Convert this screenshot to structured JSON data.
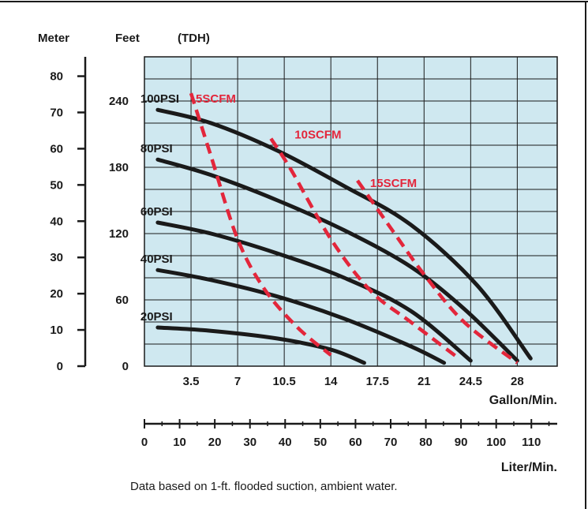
{
  "chart_data": {
    "type": "line",
    "header_labels": [
      "Meter",
      "Feet",
      "(TDH)"
    ],
    "y_left_meter_ticks": [
      "80",
      "70",
      "60",
      "50",
      "40",
      "30",
      "20",
      "10",
      "0"
    ],
    "y_feet_ticks": [
      "240",
      "180",
      "120",
      "60",
      "0"
    ],
    "x_gallon_ticks": [
      "3.5",
      "7",
      "10.5",
      "14",
      "17.5",
      "21",
      "24.5",
      "28"
    ],
    "x_gallon_label": "Gallon/Min.",
    "x_liter_ticks": [
      "0",
      "10",
      "20",
      "30",
      "40",
      "50",
      "60",
      "70",
      "80",
      "90",
      "100",
      "110"
    ],
    "x_liter_label": "Liter/Min.",
    "footnote": "Data based on 1-ft. flooded suction, ambient water.",
    "xlim": [
      0,
      31
    ],
    "ylim_feet": [
      0,
      280
    ],
    "pressure_series": [
      {
        "name": "100PSI",
        "points": [
          [
            1,
            232
          ],
          [
            5,
            220
          ],
          [
            10,
            195
          ],
          [
            15,
            163
          ],
          [
            20,
            128
          ],
          [
            25,
            73
          ],
          [
            29,
            7
          ]
        ]
      },
      {
        "name": "80PSI",
        "points": [
          [
            1,
            187
          ],
          [
            5,
            173
          ],
          [
            10,
            150
          ],
          [
            15,
            123
          ],
          [
            20,
            90
          ],
          [
            24,
            52
          ],
          [
            28,
            5
          ]
        ]
      },
      {
        "name": "60PSI",
        "points": [
          [
            1,
            130
          ],
          [
            5,
            120
          ],
          [
            10,
            102
          ],
          [
            15,
            80
          ],
          [
            20,
            50
          ],
          [
            24.5,
            5
          ]
        ]
      },
      {
        "name": "40PSI",
        "points": [
          [
            1,
            87
          ],
          [
            5,
            78
          ],
          [
            10,
            63
          ],
          [
            15,
            43
          ],
          [
            20,
            18
          ],
          [
            22.5,
            3
          ]
        ]
      },
      {
        "name": "20PSI",
        "points": [
          [
            1,
            35
          ],
          [
            5,
            32
          ],
          [
            10,
            25
          ],
          [
            14,
            15
          ],
          [
            16.5,
            3
          ]
        ]
      }
    ],
    "air_series": [
      {
        "name": "5SCFM",
        "points": [
          [
            3.5,
            247
          ],
          [
            5,
            190
          ],
          [
            7,
            115
          ],
          [
            9,
            70
          ],
          [
            11.5,
            35
          ],
          [
            14,
            10
          ]
        ],
        "color": "#e3263b"
      },
      {
        "name": "10SCFM",
        "points": [
          [
            9.5,
            206
          ],
          [
            11,
            178
          ],
          [
            14,
            115
          ],
          [
            17,
            68
          ],
          [
            20,
            40
          ],
          [
            23.5,
            8
          ]
        ],
        "color": "#e3263b"
      },
      {
        "name": "15SCFM",
        "points": [
          [
            16,
            168
          ],
          [
            18.5,
            125
          ],
          [
            21,
            83
          ],
          [
            24,
            40
          ],
          [
            28,
            3
          ]
        ],
        "color": "#e3263b"
      }
    ],
    "colors": {
      "plot_bg": "#cfe8f0",
      "grid": "#1a1a1a",
      "pressure": "#1a1a1a",
      "air": "#e3263b"
    },
    "grid": true
  }
}
